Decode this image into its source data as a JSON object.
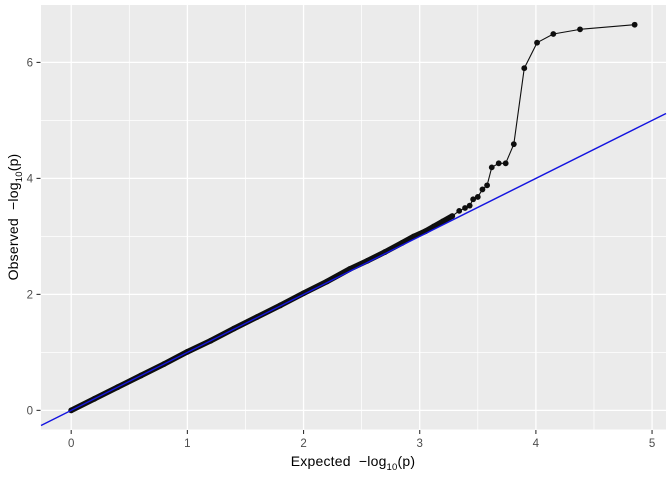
{
  "figure": {
    "kind": "qq-plot",
    "background": "#ffffff",
    "panel_background": "#ebebeb",
    "grid_color": "#ffffff",
    "point_color": "#0e0e0e",
    "ref_line_color": "#1414e0",
    "tick_label_color": "#4d4d4d",
    "tick_mark_color": "#333333",
    "axis_title_color": "#000000"
  },
  "axes": {
    "x_title": {
      "prefix": "Expected  −log",
      "sub": "10",
      "suffix": "(p)"
    },
    "y_title": {
      "prefix": "Observed  −log",
      "sub": "10",
      "suffix": "(p)"
    }
  },
  "chart_data": {
    "type": "scatter",
    "subtype": "qq-plot",
    "title": "",
    "xlabel": "Expected −log10(p)",
    "ylabel": "Observed −log10(p)",
    "x_ticks": [
      0,
      1,
      2,
      3,
      4,
      5
    ],
    "y_ticks": [
      0,
      2,
      4,
      6
    ],
    "x_range": [
      -0.26,
      5.12
    ],
    "y_range": [
      -0.33,
      6.99
    ],
    "grid": "on",
    "legend": "none",
    "reference_line": {
      "type": "identity",
      "slope": 1,
      "intercept": 0,
      "color": "blue"
    },
    "dense_diagonal_path": [
      [
        0.0,
        0.0
      ],
      [
        0.2,
        0.2
      ],
      [
        0.4,
        0.4
      ],
      [
        0.6,
        0.6
      ],
      [
        0.8,
        0.8
      ],
      [
        1.0,
        1.01
      ],
      [
        1.2,
        1.2
      ],
      [
        1.4,
        1.41
      ],
      [
        1.6,
        1.61
      ],
      [
        1.8,
        1.81
      ],
      [
        2.0,
        2.02
      ],
      [
        2.2,
        2.22
      ],
      [
        2.4,
        2.44
      ],
      [
        2.55,
        2.58
      ],
      [
        2.7,
        2.73
      ],
      [
        2.85,
        2.89
      ],
      [
        2.95,
        3.0
      ],
      [
        3.05,
        3.09
      ],
      [
        3.12,
        3.17
      ],
      [
        3.2,
        3.26
      ],
      [
        3.28,
        3.35
      ]
    ],
    "tail_points": [
      [
        3.34,
        3.44
      ],
      [
        3.39,
        3.49
      ],
      [
        3.43,
        3.53
      ],
      [
        3.46,
        3.64
      ],
      [
        3.5,
        3.68
      ],
      [
        3.54,
        3.81
      ],
      [
        3.58,
        3.88
      ],
      [
        3.62,
        4.19
      ],
      [
        3.68,
        4.26
      ],
      [
        3.74,
        4.26
      ],
      [
        3.81,
        4.59
      ],
      [
        3.9,
        5.9
      ],
      [
        4.01,
        6.34
      ],
      [
        4.15,
        6.49
      ],
      [
        4.38,
        6.57
      ],
      [
        4.85,
        6.65
      ]
    ]
  }
}
